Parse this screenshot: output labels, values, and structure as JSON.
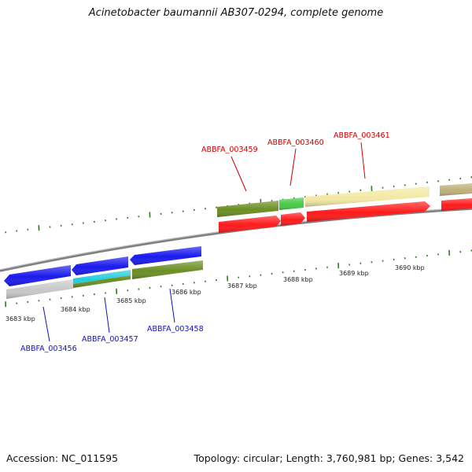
{
  "title": "Acinetobacter baumannii AB307-0294, complete genome",
  "footer": {
    "accession": "Accession: NC_011595",
    "info": "Topology: circular; Length: 3,760,981 bp; Genes: 3,542"
  },
  "tick_labels": [
    "3683 kbp",
    "3684 kbp",
    "3685 kbp",
    "3686 kbp",
    "3687 kbp",
    "3688 kbp",
    "3689 kbp",
    "3690 kbp"
  ],
  "gene_labels_top": [
    "ABBFA_003459",
    "ABBFA_003460",
    "ABBFA_003461"
  ],
  "gene_labels_bottom": [
    "ABBFA_003456",
    "ABBFA_003457",
    "ABBFA_003458"
  ],
  "colors": {
    "red": "#ff1a1a",
    "red_label": "#cc0000",
    "blue": "#1a1aee",
    "blue_label": "#1010c0",
    "olive": "#6b8e23",
    "light_green": "#44cc44",
    "cyan": "#22ccdd",
    "pale_yellow": "#f3e9a4",
    "khaki": "#bdb079",
    "grey": "#c8c8c8",
    "tick_green": "#2e7d1b",
    "backbone": "#888888"
  }
}
